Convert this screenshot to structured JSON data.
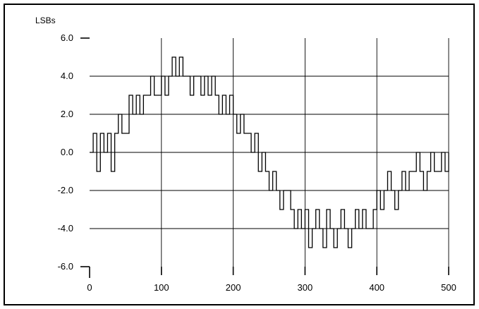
{
  "chart_data": {
    "type": "line",
    "title": "",
    "ylabel": "LSBs",
    "xlabel": "",
    "xlim": [
      0,
      500
    ],
    "ylim": [
      -6.0,
      6.0
    ],
    "x_ticks": [
      0,
      100,
      200,
      300,
      400,
      500
    ],
    "x_tick_labels": [
      "0",
      "100",
      "200",
      "300",
      "400",
      "500"
    ],
    "y_ticks": [
      6.0,
      4.0,
      2.0,
      0.0,
      -2.0,
      -4.0,
      -6.0
    ],
    "y_tick_labels": [
      "6.0",
      "4.0",
      "2.0",
      "0.0",
      "-2.0",
      "-4.0",
      "-6.0"
    ],
    "grid": true,
    "series": [
      {
        "description_free": true,
        "x": [
          0,
          5,
          10,
          15,
          20,
          25,
          30,
          35,
          40,
          45,
          50,
          55,
          60,
          65,
          70,
          75,
          80,
          85,
          90,
          95,
          100,
          105,
          110,
          115,
          120,
          125,
          130,
          135,
          140,
          145,
          150,
          155,
          160,
          165,
          170,
          175,
          180,
          185,
          190,
          195,
          200,
          205,
          210,
          215,
          220,
          225,
          230,
          235,
          240,
          245,
          250,
          255,
          260,
          265,
          270,
          275,
          280,
          285,
          290,
          295,
          300,
          305,
          310,
          315,
          320,
          325,
          330,
          335,
          340,
          345,
          350,
          355,
          360,
          365,
          370,
          375,
          380,
          385,
          390,
          395,
          400,
          405,
          410,
          415,
          420,
          425,
          430,
          435,
          440,
          445,
          450,
          455,
          460,
          465,
          470,
          475,
          480,
          485,
          490,
          495,
          500
        ],
        "values": [
          0,
          1,
          -1,
          1,
          0,
          1,
          -1,
          1,
          2,
          1,
          1,
          3,
          2,
          3,
          2,
          3,
          3,
          4,
          3,
          3,
          4,
          3,
          4,
          5,
          4,
          5,
          4,
          4,
          3,
          4,
          4,
          3,
          4,
          3,
          4,
          3,
          2,
          3,
          2,
          3,
          2,
          1,
          2,
          1,
          1,
          0,
          1,
          -1,
          0,
          -1,
          -2,
          -1,
          -2,
          -3,
          -2,
          -2,
          -3,
          -4,
          -3,
          -4,
          -3,
          -5,
          -4,
          -3,
          -4,
          -5,
          -3,
          -4,
          -5,
          -4,
          -3,
          -4,
          -5,
          -4,
          -3,
          -4,
          -3,
          -4,
          -4,
          -3,
          -2,
          -3,
          -2,
          -1,
          -2,
          -3,
          -2,
          -1,
          -2,
          -1,
          -1,
          0,
          -1,
          -2,
          -1,
          0,
          -1,
          -1,
          0,
          -1,
          0
        ]
      }
    ]
  }
}
